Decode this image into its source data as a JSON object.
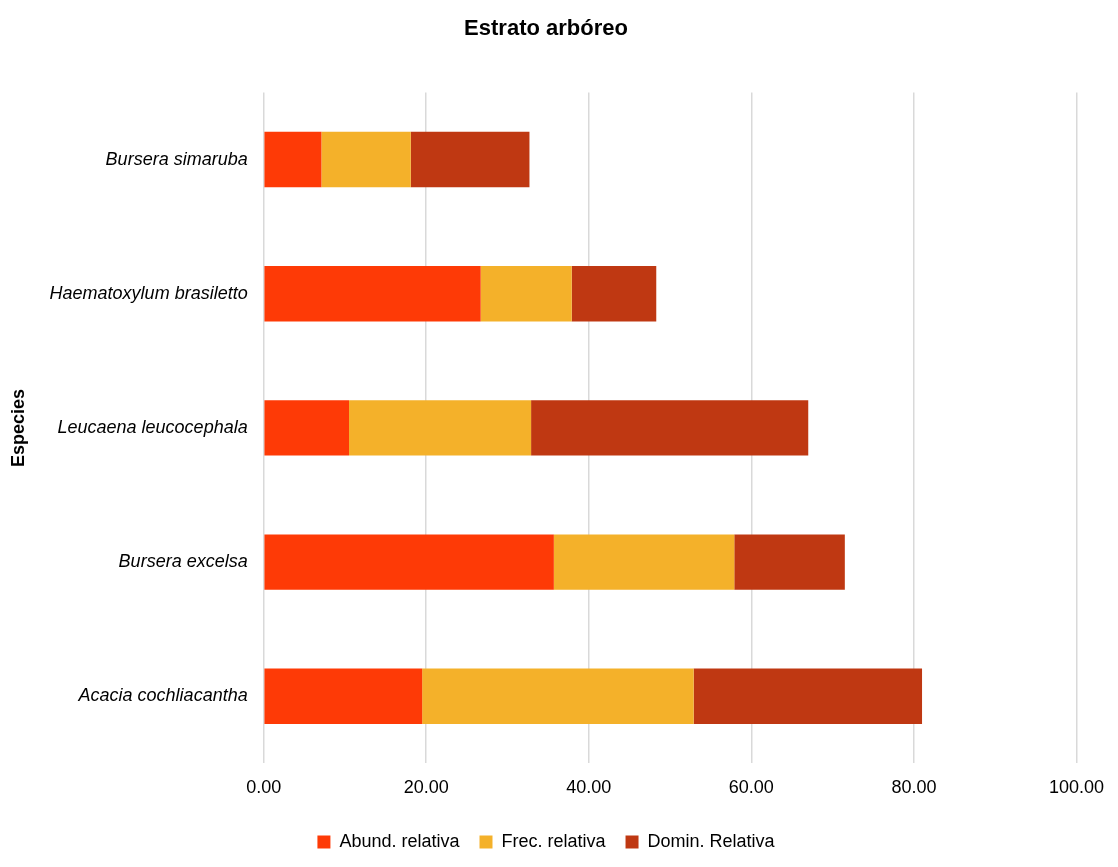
{
  "chart_data": {
    "type": "bar",
    "orientation": "horizontal",
    "stacked": true,
    "title": "Estrato arbóreo",
    "ylabel": "Especies",
    "categories": [
      "Bursera simaruba",
      "Haematoxylum brasiletto",
      "Leucaena leucocephala",
      "Bursera excelsa",
      "Acacia cochliacantha"
    ],
    "series": [
      {
        "name": "Abund. relativa",
        "color": "#fe3a06",
        "values": [
          7.1,
          26.7,
          10.5,
          35.7,
          19.5
        ]
      },
      {
        "name": "Frec. relativa",
        "color": "#f4b12a",
        "values": [
          11.0,
          11.2,
          22.4,
          22.2,
          33.4
        ]
      },
      {
        "name": "Domin. Relativa",
        "color": "#bf3812",
        "values": [
          14.6,
          10.4,
          34.1,
          13.6,
          28.1
        ]
      }
    ],
    "xlim": [
      0,
      100
    ],
    "xticks": [
      {
        "value": 0,
        "label": "0.00"
      },
      {
        "value": 20,
        "label": "20.00"
      },
      {
        "value": 40,
        "label": "40.00"
      },
      {
        "value": 60,
        "label": "60.00"
      },
      {
        "value": 80,
        "label": "80.00"
      },
      {
        "value": 100,
        "label": "100.00"
      }
    ],
    "grid": "x",
    "legend": "bottom"
  }
}
